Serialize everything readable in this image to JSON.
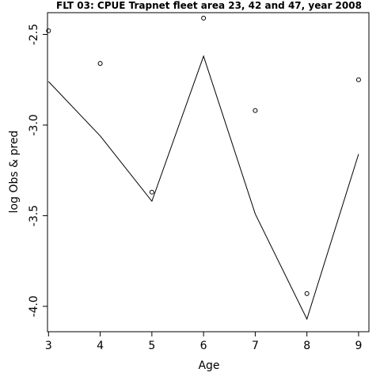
{
  "chart_data": {
    "type": "line",
    "title": "FLT 03: CPUE Trapnet fleet area 23, 42 and 47, year 2008",
    "xlabel": "Age",
    "ylabel": "log Obs & pred",
    "x": [
      3,
      4,
      5,
      6,
      7,
      8,
      9
    ],
    "x_ticks": [
      "3",
      "4",
      "5",
      "6",
      "7",
      "8",
      "9"
    ],
    "y_ticks": [
      "-2.5",
      "-3.0",
      "-3.5",
      "-4.0"
    ],
    "y_tick_values": [
      -2.5,
      -3.0,
      -3.5,
      -4.0
    ],
    "xlim": [
      2.98,
      9.2
    ],
    "ylim": [
      -4.14,
      -2.38
    ],
    "series": [
      {
        "style": "points",
        "marker": "open-circle",
        "values": [
          -2.48,
          -2.66,
          -3.37,
          -2.41,
          -2.92,
          -3.93,
          -2.75
        ]
      },
      {
        "style": "line",
        "values": [
          -2.76,
          -3.06,
          -3.42,
          -2.62,
          -3.49,
          -4.07,
          -3.16
        ]
      }
    ],
    "grid": false,
    "legend": "none"
  }
}
